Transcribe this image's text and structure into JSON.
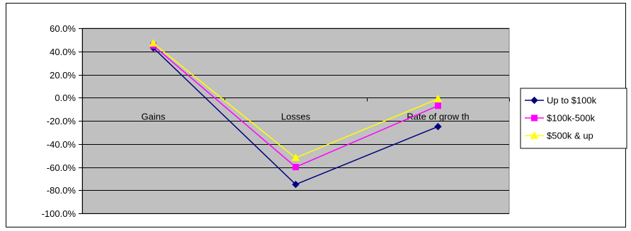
{
  "chart_data": {
    "type": "line",
    "title": "",
    "xlabel": "",
    "ylabel": "",
    "categories": [
      "Gains",
      "Losses",
      "Rate of grow th"
    ],
    "ylim": [
      -100,
      60
    ],
    "yticks": [
      60,
      40,
      20,
      0,
      -20,
      -40,
      -60,
      -80,
      -100
    ],
    "ytick_labels": [
      "60.0%",
      "40.0%",
      "20.0%",
      "0.0%",
      "-20.0%",
      "-40.0%",
      "-60.0%",
      "-80.0%",
      "-100.0%"
    ],
    "grid": true,
    "legend_position": "right",
    "plot_background": "#c0c0c0",
    "series": [
      {
        "name": "Up to $100k",
        "values": [
          43,
          -75,
          -25
        ],
        "color": "#000080",
        "marker": "diamond"
      },
      {
        "name": "$100k-500k",
        "values": [
          45,
          -60,
          -7
        ],
        "color": "#ff00ff",
        "marker": "square"
      },
      {
        "name": "$500k & up",
        "values": [
          47,
          -52,
          -1
        ],
        "color": "#ffff00",
        "marker": "triangle"
      }
    ]
  }
}
